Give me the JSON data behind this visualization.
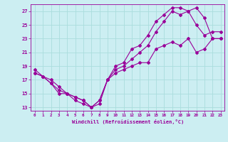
{
  "xlabel": "Windchill (Refroidissement éolien,°C)",
  "bg_color": "#cceef2",
  "grid_color": "#aadddd",
  "line_color": "#990099",
  "xlim": [
    -0.5,
    23.5
  ],
  "ylim": [
    12.5,
    28.0
  ],
  "xticks": [
    0,
    1,
    2,
    3,
    4,
    5,
    6,
    7,
    8,
    9,
    10,
    11,
    12,
    13,
    14,
    15,
    16,
    17,
    18,
    19,
    20,
    21,
    22,
    23
  ],
  "yticks": [
    13,
    15,
    17,
    19,
    21,
    23,
    25,
    27
  ],
  "line1_x": [
    0,
    1,
    2,
    3,
    4,
    5,
    6,
    7,
    8,
    9,
    10,
    11,
    12,
    13,
    14,
    15,
    16,
    17,
    18,
    19,
    20,
    21,
    22,
    23
  ],
  "line1_y": [
    18.0,
    17.5,
    16.5,
    15.0,
    15.0,
    14.0,
    13.5,
    13.0,
    13.5,
    17.0,
    19.0,
    19.5,
    21.5,
    22.0,
    23.5,
    25.5,
    26.5,
    27.5,
    27.5,
    27.0,
    27.5,
    26.0,
    23.0,
    23.0
  ],
  "line2_x": [
    0,
    1,
    2,
    3,
    4,
    5,
    6,
    7,
    8,
    9,
    10,
    11,
    12,
    13,
    14,
    15,
    16,
    17,
    18,
    19,
    20,
    21,
    22,
    23
  ],
  "line2_y": [
    18.5,
    17.5,
    17.0,
    16.0,
    15.0,
    14.5,
    14.0,
    13.0,
    14.0,
    17.0,
    18.5,
    19.0,
    20.0,
    21.0,
    22.0,
    24.0,
    25.5,
    27.0,
    26.5,
    27.0,
    25.0,
    23.5,
    24.0,
    24.0
  ],
  "line3_x": [
    0,
    1,
    2,
    3,
    4,
    5,
    6,
    7,
    8,
    9,
    10,
    11,
    12,
    13,
    14,
    15,
    16,
    17,
    18,
    19,
    20,
    21,
    22,
    23
  ],
  "line3_y": [
    18.0,
    17.5,
    16.5,
    15.5,
    15.0,
    14.5,
    14.0,
    13.0,
    14.0,
    17.0,
    18.0,
    18.5,
    19.0,
    19.5,
    19.5,
    21.5,
    22.0,
    22.5,
    22.0,
    23.0,
    21.0,
    21.5,
    23.0,
    23.0
  ]
}
